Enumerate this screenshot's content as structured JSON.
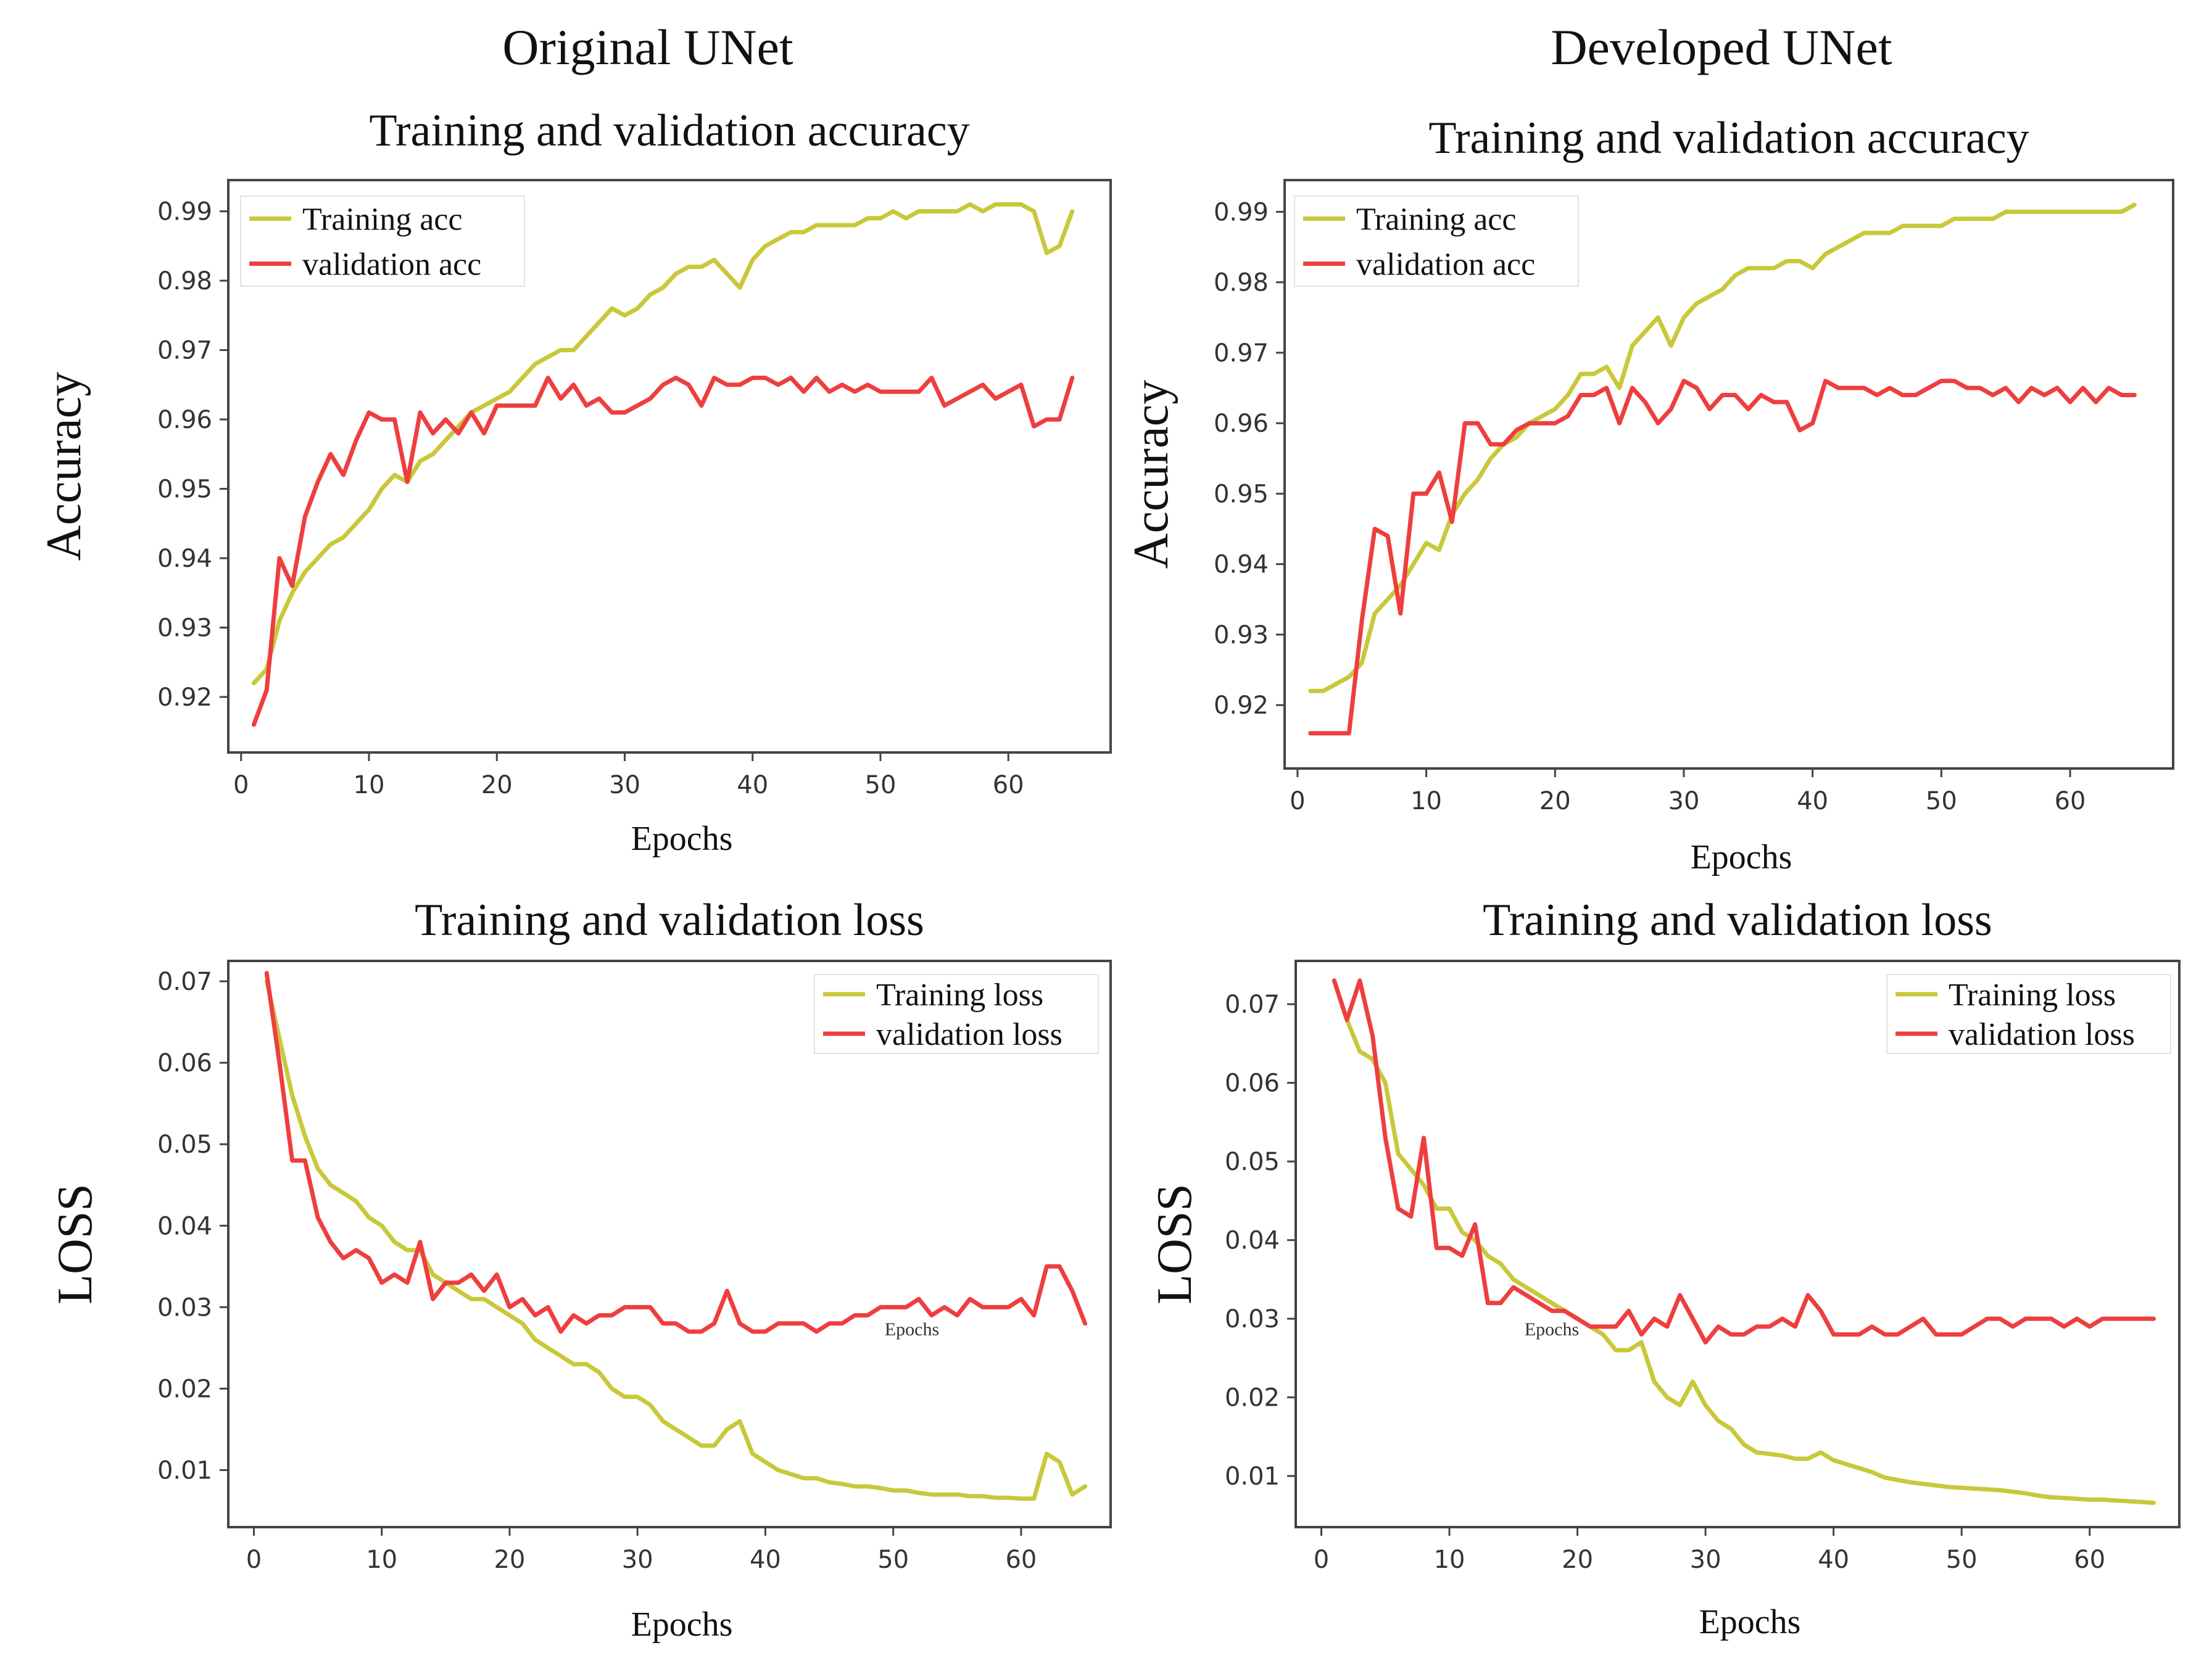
{
  "column_titles": [
    "Original UNet",
    "Developed UNet"
  ],
  "colors": {
    "training": "#c8c83a",
    "validation": "#ee3e3e",
    "frame": "#444444",
    "tick_text": "#333333"
  },
  "chart_data": [
    {
      "type": "line",
      "model": "Original UNet",
      "title": "Training and validation accuracy",
      "xlabel": "Epochs",
      "ylabel": "Accuracy",
      "xlim": [
        -1,
        68
      ],
      "ylim": [
        0.912,
        0.9945
      ],
      "xticks": [
        0,
        10,
        20,
        30,
        40,
        50,
        60
      ],
      "yticks": [
        0.92,
        0.93,
        0.94,
        0.95,
        0.96,
        0.97,
        0.98,
        0.99
      ],
      "legend": "top-left",
      "extra_text": "",
      "series": [
        {
          "name": "Training acc",
          "color": "#c8c83a",
          "x_start": 1,
          "values": [
            0.922,
            0.924,
            0.931,
            0.935,
            0.938,
            0.94,
            0.942,
            0.943,
            0.945,
            0.947,
            0.95,
            0.952,
            0.951,
            0.954,
            0.955,
            0.957,
            0.959,
            0.961,
            0.962,
            0.963,
            0.964,
            0.966,
            0.968,
            0.969,
            0.97,
            0.97,
            0.972,
            0.974,
            0.976,
            0.975,
            0.976,
            0.978,
            0.979,
            0.981,
            0.982,
            0.982,
            0.983,
            0.981,
            0.979,
            0.983,
            0.985,
            0.986,
            0.987,
            0.987,
            0.988,
            0.988,
            0.988,
            0.988,
            0.989,
            0.989,
            0.99,
            0.989,
            0.99,
            0.99,
            0.99,
            0.99,
            0.991,
            0.99,
            0.991,
            0.991,
            0.991,
            0.99,
            0.984,
            0.985,
            0.99
          ]
        },
        {
          "name": "validation acc",
          "color": "#ee3e3e",
          "x_start": 1,
          "values": [
            0.916,
            0.921,
            0.94,
            0.936,
            0.946,
            0.951,
            0.955,
            0.952,
            0.957,
            0.961,
            0.96,
            0.96,
            0.951,
            0.961,
            0.958,
            0.96,
            0.958,
            0.961,
            0.958,
            0.962,
            0.962,
            0.962,
            0.962,
            0.966,
            0.963,
            0.965,
            0.962,
            0.963,
            0.961,
            0.961,
            0.962,
            0.963,
            0.965,
            0.966,
            0.965,
            0.962,
            0.966,
            0.965,
            0.965,
            0.966,
            0.966,
            0.965,
            0.966,
            0.964,
            0.966,
            0.964,
            0.965,
            0.964,
            0.965,
            0.964,
            0.964,
            0.964,
            0.964,
            0.966,
            0.962,
            0.963,
            0.964,
            0.965,
            0.963,
            0.964,
            0.965,
            0.959,
            0.96,
            0.96,
            0.966
          ]
        }
      ]
    },
    {
      "type": "line",
      "model": "Developed UNet",
      "title": "Training and validation accuracy",
      "xlabel": "Epochs",
      "ylabel": "Accuracy",
      "xlim": [
        -1,
        68
      ],
      "ylim": [
        0.911,
        0.9945
      ],
      "xticks": [
        0,
        10,
        20,
        30,
        40,
        50,
        60
      ],
      "yticks": [
        0.92,
        0.93,
        0.94,
        0.95,
        0.96,
        0.97,
        0.98,
        0.99
      ],
      "legend": "top-left",
      "extra_text": "",
      "series": [
        {
          "name": "Training acc",
          "color": "#c8c83a",
          "x_start": 1,
          "values": [
            0.922,
            0.922,
            0.923,
            0.924,
            0.926,
            0.933,
            0.935,
            0.937,
            0.94,
            0.943,
            0.942,
            0.947,
            0.95,
            0.952,
            0.955,
            0.957,
            0.958,
            0.96,
            0.961,
            0.962,
            0.964,
            0.967,
            0.967,
            0.968,
            0.965,
            0.971,
            0.973,
            0.975,
            0.971,
            0.975,
            0.977,
            0.978,
            0.979,
            0.981,
            0.982,
            0.982,
            0.982,
            0.983,
            0.983,
            0.982,
            0.984,
            0.985,
            0.986,
            0.987,
            0.987,
            0.987,
            0.988,
            0.988,
            0.988,
            0.988,
            0.989,
            0.989,
            0.989,
            0.989,
            0.99,
            0.99,
            0.99,
            0.99,
            0.99,
            0.99,
            0.99,
            0.99,
            0.99,
            0.99,
            0.991
          ]
        },
        {
          "name": "validation acc",
          "color": "#ee3e3e",
          "x_start": 1,
          "values": [
            0.916,
            0.916,
            0.916,
            0.916,
            0.932,
            0.945,
            0.944,
            0.933,
            0.95,
            0.95,
            0.953,
            0.946,
            0.96,
            0.96,
            0.957,
            0.957,
            0.959,
            0.96,
            0.96,
            0.96,
            0.961,
            0.964,
            0.964,
            0.965,
            0.96,
            0.965,
            0.963,
            0.96,
            0.962,
            0.966,
            0.965,
            0.962,
            0.964,
            0.964,
            0.962,
            0.964,
            0.963,
            0.963,
            0.959,
            0.96,
            0.966,
            0.965,
            0.965,
            0.965,
            0.964,
            0.965,
            0.964,
            0.964,
            0.965,
            0.966,
            0.966,
            0.965,
            0.965,
            0.964,
            0.965,
            0.963,
            0.965,
            0.964,
            0.965,
            0.963,
            0.965,
            0.963,
            0.965,
            0.964,
            0.964
          ]
        }
      ]
    },
    {
      "type": "line",
      "model": "Original UNet",
      "title": "Training and validation loss",
      "xlabel": "Epochs",
      "ylabel": "LOSS",
      "xlim": [
        -2,
        67
      ],
      "ylim": [
        0.003,
        0.0725
      ],
      "xticks": [
        0,
        10,
        20,
        30,
        40,
        50,
        60
      ],
      "yticks": [
        0.01,
        0.02,
        0.03,
        0.04,
        0.05,
        0.06,
        0.07
      ],
      "legend": "top-right",
      "extra_text": "Epochs",
      "series": [
        {
          "name": "Training loss",
          "color": "#c8c83a",
          "x_start": 1,
          "values": [
            0.07,
            0.063,
            0.056,
            0.051,
            0.047,
            0.045,
            0.044,
            0.043,
            0.041,
            0.04,
            0.038,
            0.037,
            0.037,
            0.034,
            0.033,
            0.032,
            0.031,
            0.031,
            0.03,
            0.029,
            0.028,
            0.026,
            0.025,
            0.024,
            0.023,
            0.023,
            0.022,
            0.02,
            0.019,
            0.019,
            0.018,
            0.016,
            0.015,
            0.014,
            0.013,
            0.013,
            0.015,
            0.016,
            0.012,
            0.011,
            0.01,
            0.0095,
            0.009,
            0.009,
            0.0085,
            0.0083,
            0.008,
            0.008,
            0.0078,
            0.0075,
            0.0075,
            0.0072,
            0.007,
            0.007,
            0.007,
            0.0068,
            0.0068,
            0.0066,
            0.0066,
            0.0065,
            0.0065,
            0.012,
            0.011,
            0.007,
            0.008
          ]
        },
        {
          "name": "validation loss",
          "color": "#ee3e3e",
          "x_start": 1,
          "values": [
            0.071,
            0.06,
            0.048,
            0.048,
            0.041,
            0.038,
            0.036,
            0.037,
            0.036,
            0.033,
            0.034,
            0.033,
            0.038,
            0.031,
            0.033,
            0.033,
            0.034,
            0.032,
            0.034,
            0.03,
            0.031,
            0.029,
            0.03,
            0.027,
            0.029,
            0.028,
            0.029,
            0.029,
            0.03,
            0.03,
            0.03,
            0.028,
            0.028,
            0.027,
            0.027,
            0.028,
            0.032,
            0.028,
            0.027,
            0.027,
            0.028,
            0.028,
            0.028,
            0.027,
            0.028,
            0.028,
            0.029,
            0.029,
            0.03,
            0.03,
            0.03,
            0.031,
            0.029,
            0.03,
            0.029,
            0.031,
            0.03,
            0.03,
            0.03,
            0.031,
            0.029,
            0.035,
            0.035,
            0.032,
            0.028
          ]
        }
      ]
    },
    {
      "type": "line",
      "model": "Developed UNet",
      "title": "Training and validation loss",
      "xlabel": "Epochs",
      "ylabel": "LOSS",
      "xlim": [
        -2,
        67
      ],
      "ylim": [
        0.0035,
        0.0755
      ],
      "xticks": [
        0,
        10,
        20,
        30,
        40,
        50,
        60
      ],
      "yticks": [
        0.01,
        0.02,
        0.03,
        0.04,
        0.05,
        0.06,
        0.07
      ],
      "legend": "top-right",
      "extra_text": "Epochs",
      "series": [
        {
          "name": "Training loss",
          "color": "#c8c83a",
          "x_start": 1,
          "values": [
            0.073,
            0.068,
            0.064,
            0.063,
            0.06,
            0.051,
            0.049,
            0.047,
            0.044,
            0.044,
            0.041,
            0.04,
            0.038,
            0.037,
            0.035,
            0.034,
            0.033,
            0.032,
            0.031,
            0.03,
            0.029,
            0.028,
            0.026,
            0.026,
            0.027,
            0.022,
            0.02,
            0.019,
            0.022,
            0.019,
            0.017,
            0.016,
            0.014,
            0.013,
            0.0128,
            0.0126,
            0.0122,
            0.0122,
            0.013,
            0.012,
            0.0115,
            0.011,
            0.0105,
            0.0098,
            0.0095,
            0.0092,
            0.009,
            0.0088,
            0.0086,
            0.0085,
            0.0084,
            0.0083,
            0.0082,
            0.008,
            0.0078,
            0.0075,
            0.0073,
            0.0072,
            0.0071,
            0.007,
            0.007,
            0.0069,
            0.0068,
            0.0067,
            0.0066
          ]
        },
        {
          "name": "validation loss",
          "color": "#ee3e3e",
          "x_start": 1,
          "values": [
            0.073,
            0.068,
            0.073,
            0.066,
            0.053,
            0.044,
            0.043,
            0.053,
            0.039,
            0.039,
            0.038,
            0.042,
            0.032,
            0.032,
            0.034,
            0.033,
            0.032,
            0.031,
            0.031,
            0.03,
            0.029,
            0.029,
            0.029,
            0.031,
            0.028,
            0.03,
            0.029,
            0.033,
            0.03,
            0.027,
            0.029,
            0.028,
            0.028,
            0.029,
            0.029,
            0.03,
            0.029,
            0.033,
            0.031,
            0.028,
            0.028,
            0.028,
            0.029,
            0.028,
            0.028,
            0.029,
            0.03,
            0.028,
            0.028,
            0.028,
            0.029,
            0.03,
            0.03,
            0.029,
            0.03,
            0.03,
            0.03,
            0.029,
            0.03,
            0.029,
            0.03,
            0.03,
            0.03,
            0.03,
            0.03
          ]
        }
      ]
    }
  ]
}
